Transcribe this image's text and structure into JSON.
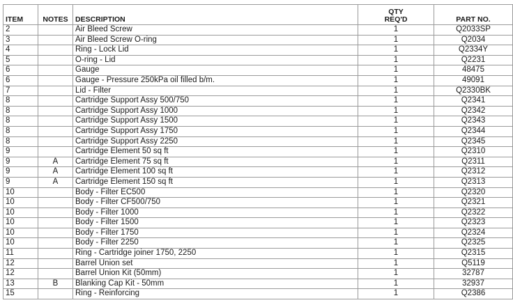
{
  "table": {
    "headers": {
      "item": "ITEM",
      "notes": "NOTES",
      "description": "DESCRIPTION",
      "qty_line1": "QTY",
      "qty_line2": "REQ'D",
      "part_no": "PART NO."
    },
    "rows": [
      {
        "item": "2",
        "notes": "",
        "description": "Air Bleed Screw",
        "qty": "1",
        "part_no": "Q2033SP"
      },
      {
        "item": "3",
        "notes": "",
        "description": "Air Bleed Screw O-ring",
        "qty": "1",
        "part_no": "Q2034"
      },
      {
        "item": "4",
        "notes": "",
        "description": "Ring - Lock Lid",
        "qty": "1",
        "part_no": "Q2334Y"
      },
      {
        "item": "5",
        "notes": "",
        "description": "O-ring - Lid",
        "qty": "1",
        "part_no": "Q2231"
      },
      {
        "item": "6",
        "notes": "",
        "description": "Gauge",
        "qty": "1",
        "part_no": "48475"
      },
      {
        "item": "6",
        "notes": "",
        "description": "Gauge - Pressure 250kPa oil filled b/m.",
        "qty": "1",
        "part_no": "49091"
      },
      {
        "item": "7",
        "notes": "",
        "description": "Lid - Filter",
        "qty": "1",
        "part_no": "Q2330BK"
      },
      {
        "item": "8",
        "notes": "",
        "description": "Cartridge Support Assy 500/750",
        "qty": "1",
        "part_no": "Q2341"
      },
      {
        "item": "8",
        "notes": "",
        "description": "Cartridge Support Assy 1000",
        "qty": "1",
        "part_no": "Q2342"
      },
      {
        "item": "8",
        "notes": "",
        "description": "Cartridge Support Assy 1500",
        "qty": "1",
        "part_no": "Q2343"
      },
      {
        "item": "8",
        "notes": "",
        "description": "Cartridge Support Assy 1750",
        "qty": "1",
        "part_no": "Q2344"
      },
      {
        "item": "8",
        "notes": "",
        "description": "Cartridge Support Assy 2250",
        "qty": "1",
        "part_no": "Q2345"
      },
      {
        "item": "9",
        "notes": "",
        "description": "Cartridge Element 50 sq ft",
        "qty": "1",
        "part_no": "Q2310"
      },
      {
        "item": "9",
        "notes": "A",
        "description": "Cartridge Element 75 sq ft",
        "qty": "1",
        "part_no": "Q2311"
      },
      {
        "item": "9",
        "notes": "A",
        "description": "Cartridge Element 100 sq ft",
        "qty": "1",
        "part_no": "Q2312"
      },
      {
        "item": "9",
        "notes": "A",
        "description": "Cartridge Element 150 sq ft",
        "qty": "1",
        "part_no": "Q2313"
      },
      {
        "item": "10",
        "notes": "",
        "description": "Body - Filter  EC500",
        "qty": "1",
        "part_no": "Q2320"
      },
      {
        "item": "10",
        "notes": "",
        "description": "Body - Filter  CF500/750",
        "qty": "1",
        "part_no": "Q2321"
      },
      {
        "item": "10",
        "notes": "",
        "description": "Body - Filter  1000",
        "qty": "1",
        "part_no": "Q2322"
      },
      {
        "item": "10",
        "notes": "",
        "description": "Body - Filter  1500",
        "qty": "1",
        "part_no": "Q2323"
      },
      {
        "item": "10",
        "notes": "",
        "description": "Body - Filter  1750",
        "qty": "1",
        "part_no": "Q2324"
      },
      {
        "item": "10",
        "notes": "",
        "description": "Body - Filter  2250",
        "qty": "1",
        "part_no": "Q2325"
      },
      {
        "item": "11",
        "notes": "",
        "description": "Ring - Cartridge joiner  1750, 2250",
        "qty": "1",
        "part_no": "Q2315"
      },
      {
        "item": "12",
        "notes": "",
        "description": "Barrel Union set",
        "qty": "1",
        "part_no": "Q5119"
      },
      {
        "item": "12",
        "notes": "",
        "description": "Barrel Union Kit (50mm)",
        "qty": "1",
        "part_no": "32787"
      },
      {
        "item": "13",
        "notes": "B",
        "description": "Blanking Cap Kit - 50mm",
        "qty": "1",
        "part_no": "32937"
      },
      {
        "item": "15",
        "notes": "",
        "description": "Ring - Reinforcing",
        "qty": "1",
        "part_no": "Q2386"
      }
    ]
  }
}
